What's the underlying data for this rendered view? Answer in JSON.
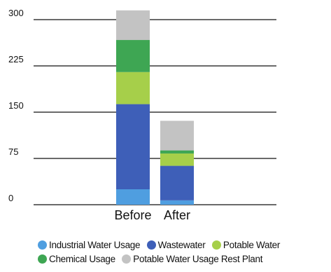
{
  "chart_data": {
    "type": "bar",
    "stacked": true,
    "categories": [
      "Before",
      "After"
    ],
    "ylim": [
      0,
      300
    ],
    "yticks": [
      "0",
      "75",
      "150",
      "225",
      "300"
    ],
    "grid": true,
    "legend_position": "bottom",
    "series": [
      {
        "name": "Industrial Water Usage",
        "color": "#4f9ee0",
        "values": [
          25,
          7
        ]
      },
      {
        "name": "Wastewater",
        "color": "#3e5fb8",
        "values": [
          138,
          56
        ]
      },
      {
        "name": "Potable Water",
        "color": "#a6cf4a",
        "values": [
          52,
          20
        ]
      },
      {
        "name": "Chemical Usage",
        "color": "#3ea653",
        "values": [
          52,
          5
        ]
      },
      {
        "name": "Potable Water Usage Rest Plant",
        "color": "#c3c3c3",
        "values": [
          48,
          48
        ]
      }
    ]
  }
}
